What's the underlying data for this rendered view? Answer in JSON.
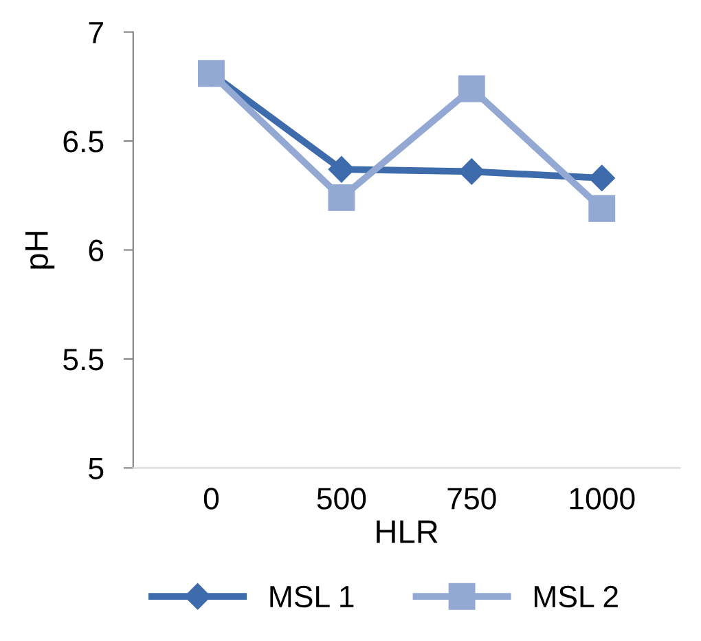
{
  "chart_data": {
    "type": "line",
    "xlabel": "HLR",
    "ylabel": "pH",
    "categories": [
      "0",
      "500",
      "750",
      "1000"
    ],
    "series": [
      {
        "name": "MSL 1",
        "color": "#3d6bab",
        "values": [
          6.81,
          6.37,
          6.36,
          6.33
        ],
        "marker": "diamond"
      },
      {
        "name": "MSL 2",
        "color": "#94a8d4",
        "values": [
          6.81,
          6.24,
          6.74,
          6.19
        ],
        "marker": "square"
      }
    ],
    "ylim": [
      5,
      7
    ],
    "yticks": [
      5,
      5.5,
      6,
      6.5,
      7
    ],
    "grid": false,
    "legend": "bottom",
    "line_style": "solid"
  }
}
